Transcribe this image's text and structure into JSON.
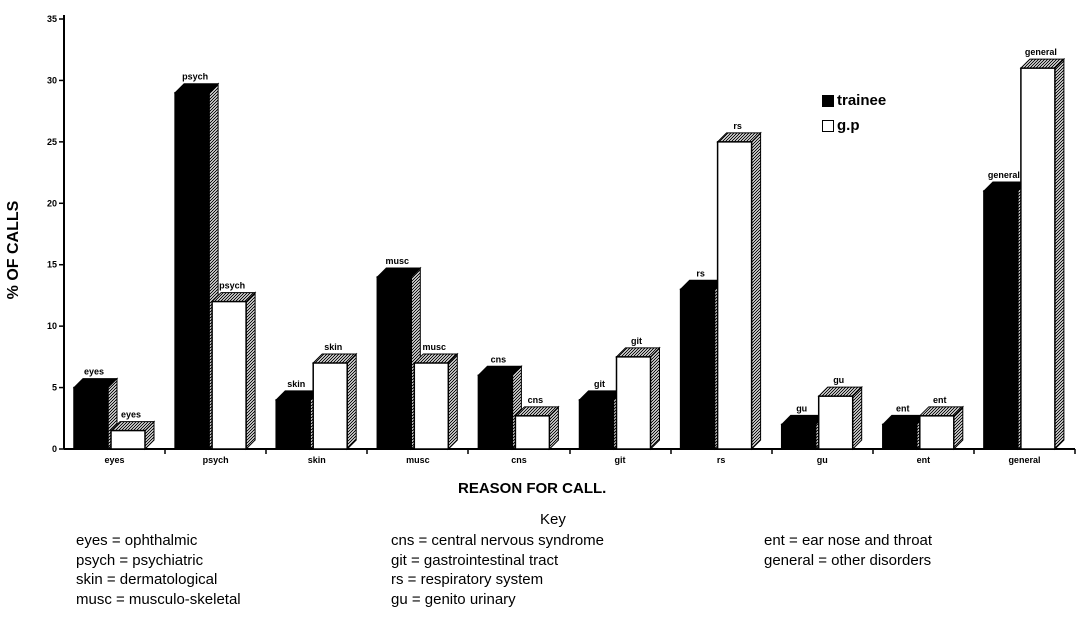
{
  "chart_data": {
    "type": "bar",
    "categories": [
      "eyes",
      "psych",
      "skin",
      "musc",
      "cns",
      "git",
      "rs",
      "gu",
      "ent",
      "general"
    ],
    "series": [
      {
        "name": "trainee",
        "values": [
          5,
          29,
          4,
          14,
          6,
          4,
          13,
          2,
          2,
          21
        ],
        "color": "#000000"
      },
      {
        "name": "g.p",
        "values": [
          1.5,
          12,
          7,
          7,
          2.7,
          7.5,
          25,
          4.3,
          2.7,
          31
        ],
        "color": "#ffffff"
      }
    ],
    "data_labels": {
      "trainee": [
        "eyes",
        "psych",
        "skin",
        "musc",
        "cns",
        "git",
        "rs",
        "gu",
        "ent",
        "general"
      ],
      "g.p": [
        "eyes",
        "psych",
        "skin",
        "musc",
        "cns",
        "git",
        "rs",
        "gu",
        "ent",
        "general"
      ]
    },
    "xlabel": "REASON FOR CALL.",
    "ylabel": "% OF CALLS",
    "ylim": [
      0,
      35
    ],
    "yticks": [
      0,
      5,
      10,
      15,
      20,
      25,
      30,
      35
    ],
    "grid": false,
    "legend_position": "top-right",
    "style": "3d-bars"
  },
  "legend": {
    "items": [
      {
        "label": "trainee",
        "color": "#000000"
      },
      {
        "label": "g.p",
        "color": "#ffffff"
      }
    ]
  },
  "key": {
    "title": "Key",
    "columns": [
      [
        "eyes = ophthalmic",
        "psych = psychiatric",
        "skin = dermatological",
        "musc = musculo-skeletal"
      ],
      [
        "cns = central nervous syndrome",
        "git = gastrointestinal tract",
        "rs = respiratory system",
        "gu = genito urinary"
      ],
      [
        "ent = ear nose and throat",
        "general = other disorders"
      ]
    ]
  }
}
